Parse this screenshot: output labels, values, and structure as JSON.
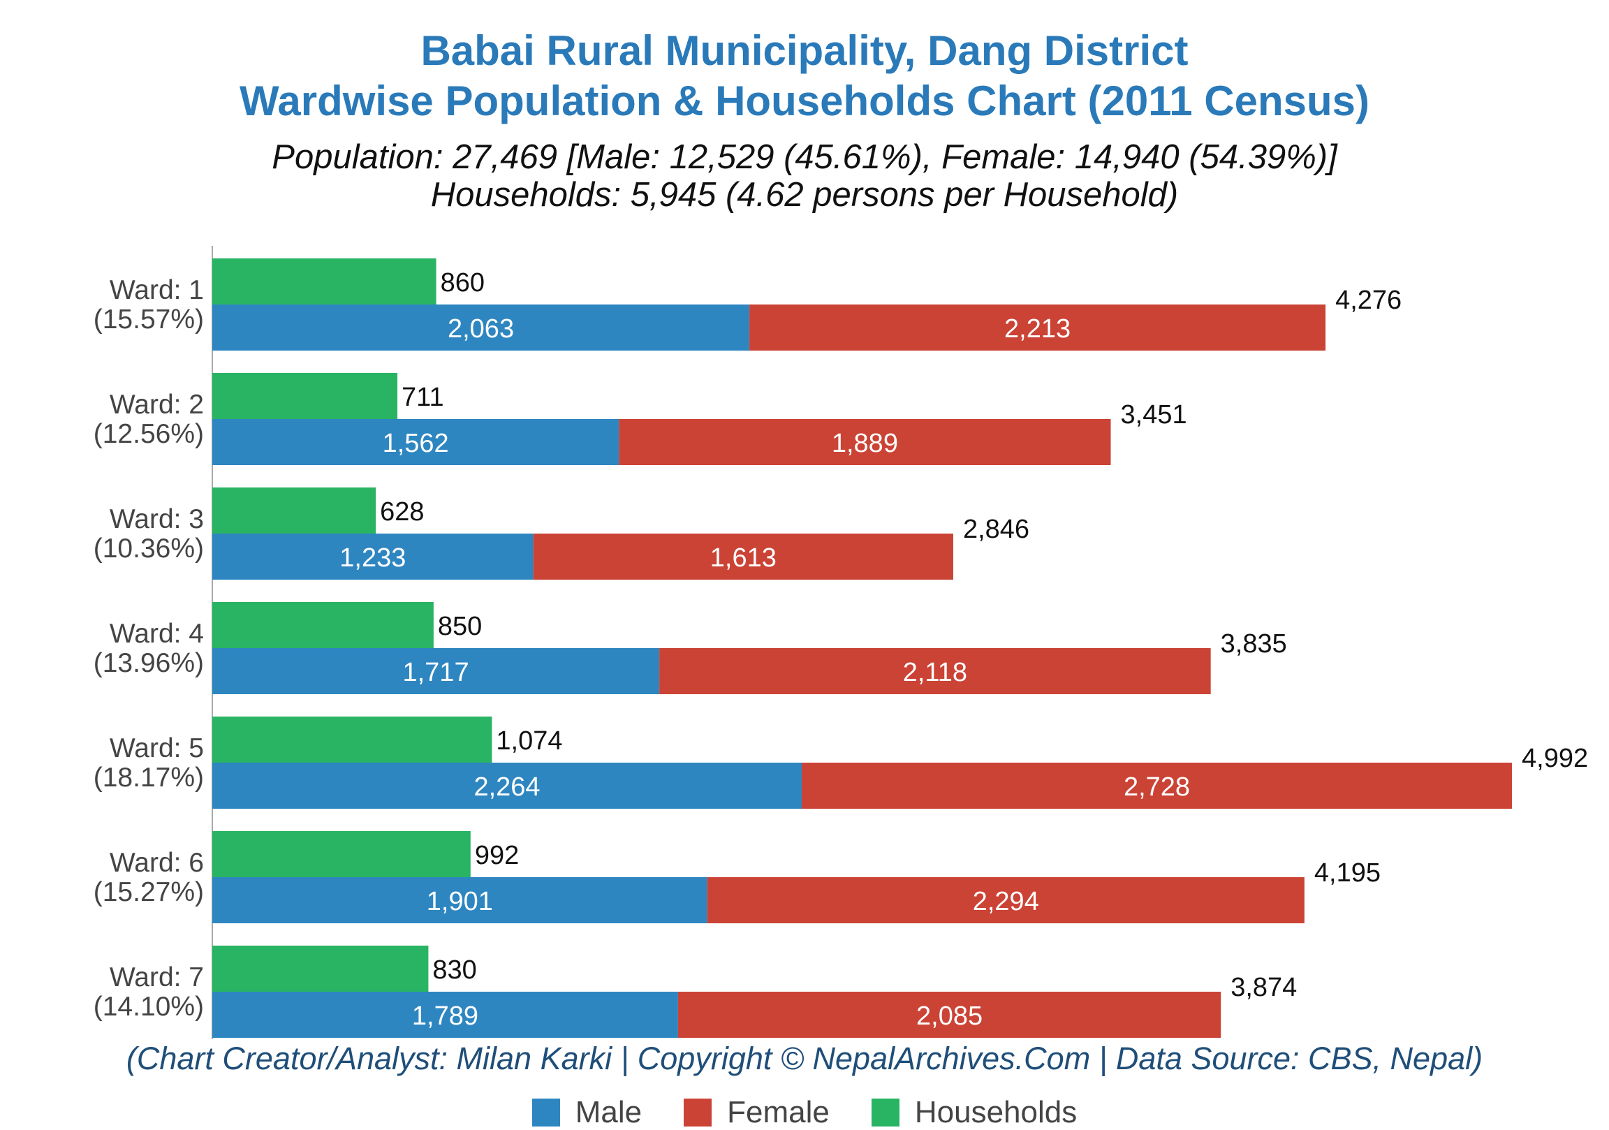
{
  "title_line1": "Babai Rural Municipality, Dang District",
  "title_line2": "Wardwise Population & Households Chart (2011 Census)",
  "subtitle_line1": "Population: 27,469 [Male: 12,529 (45.61%), Female: 14,940 (54.39%)]",
  "subtitle_line2": "Households: 5,945 (4.62 persons per Household)",
  "credit": "(Chart Creator/Analyst: Milan Karki | Copyright © NepalArchives.Com | Data Source: CBS, Nepal)",
  "legend": [
    {
      "label": "Male",
      "color": "#2e86c1"
    },
    {
      "label": "Female",
      "color": "#cb4335"
    },
    {
      "label": "Households",
      "color": "#28b463"
    }
  ],
  "chart_data": {
    "type": "bar",
    "orientation": "horizontal",
    "stacked_series": [
      "Male",
      "Female"
    ],
    "categories": [
      {
        "label": "Ward: 1",
        "pct": "(15.57%)"
      },
      {
        "label": "Ward: 2",
        "pct": "(12.56%)"
      },
      {
        "label": "Ward: 3",
        "pct": "(10.36%)"
      },
      {
        "label": "Ward: 4",
        "pct": "(13.96%)"
      },
      {
        "label": "Ward: 5",
        "pct": "(18.17%)"
      },
      {
        "label": "Ward: 6",
        "pct": "(15.27%)"
      },
      {
        "label": "Ward: 7",
        "pct": "(14.10%)"
      }
    ],
    "series": [
      {
        "name": "Male",
        "color": "#2e86c1",
        "values": [
          2063,
          1562,
          1233,
          1717,
          2264,
          1901,
          1789
        ]
      },
      {
        "name": "Female",
        "color": "#cb4335",
        "values": [
          2213,
          1889,
          1613,
          2118,
          2728,
          2294,
          2085
        ]
      },
      {
        "name": "Households",
        "color": "#28b463",
        "values": [
          860,
          711,
          628,
          850,
          1074,
          992,
          830
        ]
      }
    ],
    "totals": [
      4276,
      3451,
      2846,
      3835,
      4992,
      4195,
      3874
    ],
    "xlim": [
      0,
      4992
    ],
    "grid": false,
    "legend_position": "bottom"
  }
}
